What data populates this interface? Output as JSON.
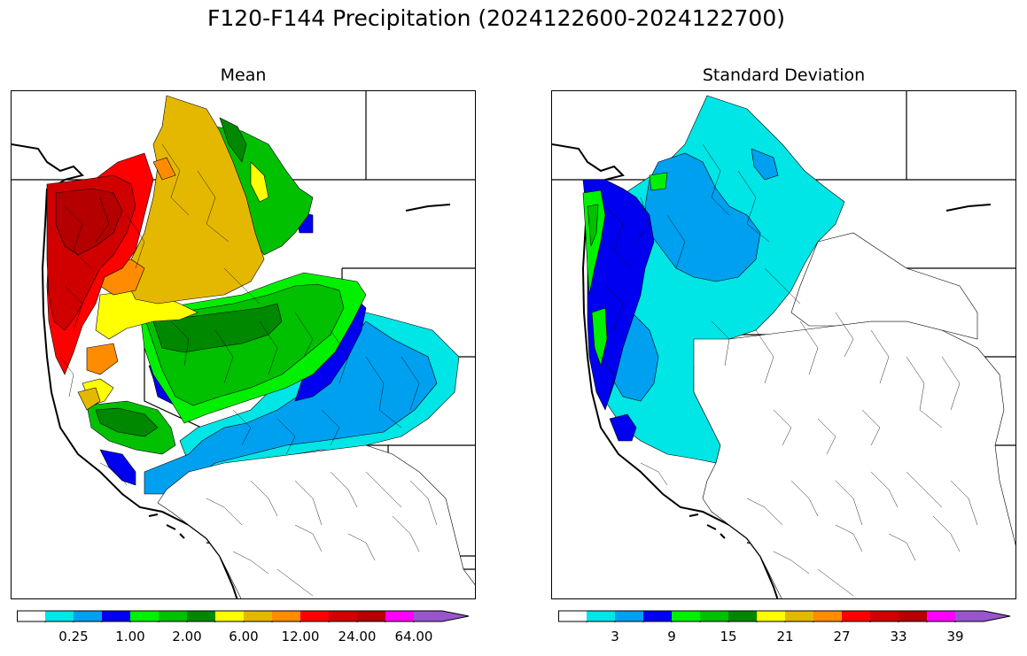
{
  "title": "F120-F144 Precipitation (2024122600-2024122700)",
  "panels": {
    "mean": {
      "title": "Mean",
      "colorbar": {
        "colors": [
          "#ffffff",
          "#00e5e5",
          "#00a0f0",
          "#0000f0",
          "#00f000",
          "#00c000",
          "#008800",
          "#ffff00",
          "#e5b800",
          "#ff8c00",
          "#ff0000",
          "#d00000",
          "#b40000",
          "#ff00ff",
          "#9955cc"
        ],
        "tick_labels": [
          "0.25",
          "1.00",
          "2.00",
          "6.00",
          "12.00",
          "24.00",
          "64.00"
        ]
      }
    },
    "sd": {
      "title": "Standard Deviation",
      "colorbar": {
        "colors": [
          "#ffffff",
          "#00e5e5",
          "#00a0f0",
          "#0000f0",
          "#00f000",
          "#00c000",
          "#008800",
          "#ffff00",
          "#e5b800",
          "#ff8c00",
          "#ff0000",
          "#d00000",
          "#b40000",
          "#ff00ff",
          "#9955cc"
        ],
        "tick_labels": [
          "3",
          "9",
          "15",
          "21",
          "27",
          "33",
          "39"
        ]
      }
    }
  }
}
